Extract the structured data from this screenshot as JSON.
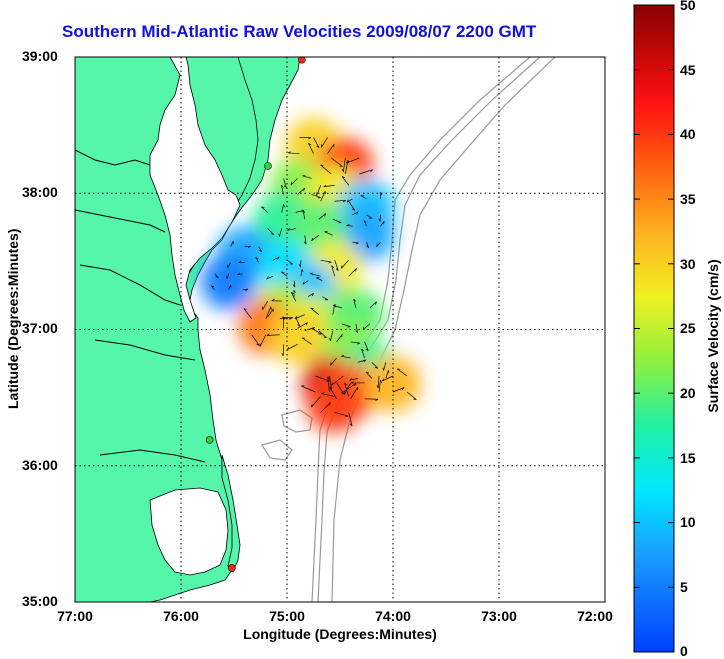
{
  "title": "Southern Mid-Atlantic Raw Velocities 2009/08/07 2200 GMT",
  "xlabel": "Longitude (Degrees:Minutes)",
  "ylabel": "Latitude (Degrees:Minutes)",
  "x_ticks": [
    "77:00",
    "76:00",
    "75:00",
    "74:00",
    "73:00",
    "72:00"
  ],
  "y_ticks": [
    "39:00",
    "38:00",
    "37:00",
    "36:00",
    "35:00"
  ],
  "colorbar": {
    "label": "Surface Velocity (cm/s)",
    "ticks": [
      "50",
      "45",
      "40",
      "35",
      "30",
      "25",
      "20",
      "15",
      "10",
      "5",
      "0"
    ],
    "range": [
      0,
      50
    ]
  },
  "colors": {
    "land": "#55f5aa",
    "ocean": "#ffffff",
    "bathymetry": "#999999",
    "title": "#1010e0",
    "station_marker": "#ff2020",
    "station_marker_alt": "#30d040"
  },
  "map_extent": {
    "lon": [
      -77,
      -72
    ],
    "lat": [
      35,
      39
    ]
  },
  "stations": [
    {
      "lon": -74.86,
      "lat": 38.98,
      "color": "red"
    },
    {
      "lon": -75.18,
      "lat": 38.2,
      "color": "green"
    },
    {
      "lon": -75.73,
      "lat": 36.19,
      "color": "green"
    },
    {
      "lon": -75.52,
      "lat": 35.25,
      "color": "red"
    }
  ],
  "chart_data": {
    "type": "heatmap",
    "title": "Southern Mid-Atlantic Raw Velocities 2009/08/07 2200 GMT",
    "xlabel": "Longitude (Degrees:Minutes)",
    "ylabel": "Latitude (Degrees:Minutes)",
    "xlim": [
      -77,
      -72
    ],
    "ylim": [
      35,
      39
    ],
    "grid": true,
    "velocity_points": [
      {
        "lon": -74.75,
        "lat": 38.35,
        "speed": 30
      },
      {
        "lon": -74.45,
        "lat": 38.2,
        "speed": 40
      },
      {
        "lon": -74.9,
        "lat": 38.05,
        "speed": 22
      },
      {
        "lon": -74.55,
        "lat": 38.0,
        "speed": 28
      },
      {
        "lon": -74.25,
        "lat": 37.9,
        "speed": 10
      },
      {
        "lon": -74.25,
        "lat": 37.7,
        "speed": 8
      },
      {
        "lon": -75.05,
        "lat": 37.8,
        "speed": 18
      },
      {
        "lon": -74.7,
        "lat": 37.75,
        "speed": 20
      },
      {
        "lon": -75.4,
        "lat": 37.55,
        "speed": 8
      },
      {
        "lon": -75.0,
        "lat": 37.45,
        "speed": 12
      },
      {
        "lon": -74.55,
        "lat": 37.45,
        "speed": 28
      },
      {
        "lon": -75.55,
        "lat": 37.35,
        "speed": 5
      },
      {
        "lon": -74.8,
        "lat": 37.3,
        "speed": 10
      },
      {
        "lon": -75.05,
        "lat": 37.15,
        "speed": 24
      },
      {
        "lon": -74.7,
        "lat": 37.05,
        "speed": 26
      },
      {
        "lon": -74.35,
        "lat": 37.1,
        "speed": 20
      },
      {
        "lon": -75.2,
        "lat": 37.02,
        "speed": 36
      },
      {
        "lon": -74.9,
        "lat": 36.95,
        "speed": 30
      },
      {
        "lon": -74.4,
        "lat": 36.85,
        "speed": 22
      },
      {
        "lon": -74.2,
        "lat": 36.7,
        "speed": 18
      },
      {
        "lon": -74.6,
        "lat": 36.6,
        "speed": 45
      },
      {
        "lon": -74.4,
        "lat": 36.55,
        "speed": 38
      },
      {
        "lon": -74.0,
        "lat": 36.6,
        "speed": 32
      },
      {
        "lon": -74.55,
        "lat": 36.45,
        "speed": 40
      }
    ]
  }
}
